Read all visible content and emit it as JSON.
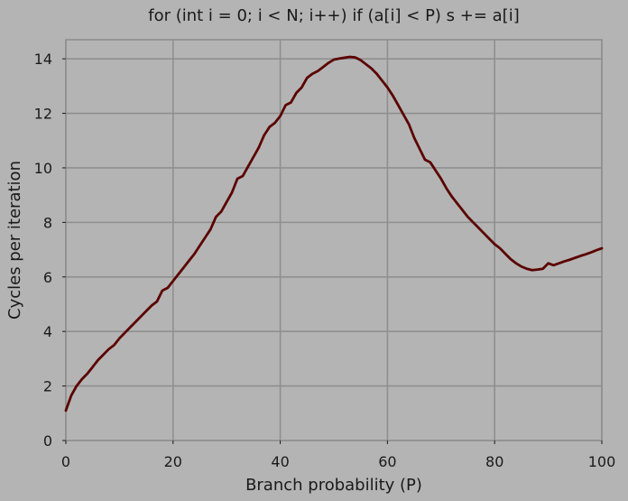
{
  "chart_data": {
    "type": "line",
    "title": "for (int i = 0; i < N; i++) if (a[i] < P) s += a[i]",
    "xlabel": "Branch probability (P)",
    "ylabel": "Cycles per iteration",
    "xlim": [
      0,
      100
    ],
    "ylim": [
      0,
      14.7
    ],
    "xticks": [
      0,
      20,
      40,
      60,
      80,
      100
    ],
    "yticks": [
      0,
      2,
      4,
      6,
      8,
      10,
      12,
      14
    ],
    "grid": true,
    "colors": {
      "background": "#b4b4b4",
      "grid": "#8f8f8f",
      "line": "#5c0000"
    },
    "series": [
      {
        "x": [
          0,
          1,
          2,
          3,
          4,
          5,
          6,
          7,
          8,
          9,
          10,
          11,
          12,
          13,
          14,
          15,
          16,
          17,
          18,
          19,
          20,
          21,
          22,
          23,
          24,
          25,
          26,
          27,
          28,
          29,
          30,
          31,
          32,
          33,
          34,
          35,
          36,
          37,
          38,
          39,
          40,
          41,
          42,
          43,
          44,
          45,
          46,
          47,
          48,
          49,
          50,
          51,
          52,
          53,
          54,
          55,
          56,
          57,
          58,
          59,
          60,
          61,
          62,
          63,
          64,
          65,
          66,
          67,
          68,
          69,
          70,
          71,
          72,
          73,
          74,
          75,
          76,
          77,
          78,
          79,
          80,
          81,
          82,
          83,
          84,
          85,
          86,
          87,
          88,
          89,
          90,
          91,
          92,
          93,
          94,
          95,
          96,
          97,
          98,
          99,
          100
        ],
        "values": [
          1.1,
          1.65,
          2.0,
          2.25,
          2.45,
          2.7,
          2.95,
          3.15,
          3.35,
          3.5,
          3.75,
          3.95,
          4.15,
          4.35,
          4.55,
          4.75,
          4.95,
          5.1,
          5.5,
          5.6,
          5.85,
          6.1,
          6.35,
          6.6,
          6.85,
          7.15,
          7.45,
          7.75,
          8.2,
          8.4,
          8.75,
          9.1,
          9.6,
          9.7,
          10.05,
          10.4,
          10.75,
          11.2,
          11.5,
          11.65,
          11.9,
          12.3,
          12.4,
          12.75,
          12.95,
          13.3,
          13.45,
          13.55,
          13.7,
          13.85,
          13.97,
          14.01,
          14.04,
          14.07,
          14.05,
          13.95,
          13.8,
          13.65,
          13.45,
          13.2,
          12.95,
          12.65,
          12.3,
          11.95,
          11.6,
          11.1,
          10.7,
          10.3,
          10.2,
          9.9,
          9.6,
          9.25,
          8.95,
          8.7,
          8.45,
          8.2,
          8.0,
          7.8,
          7.6,
          7.4,
          7.2,
          7.05,
          6.85,
          6.65,
          6.5,
          6.38,
          6.3,
          6.25,
          6.27,
          6.3,
          6.5,
          6.43,
          6.5,
          6.57,
          6.63,
          6.7,
          6.77,
          6.83,
          6.9,
          6.98,
          7.05
        ]
      }
    ]
  }
}
